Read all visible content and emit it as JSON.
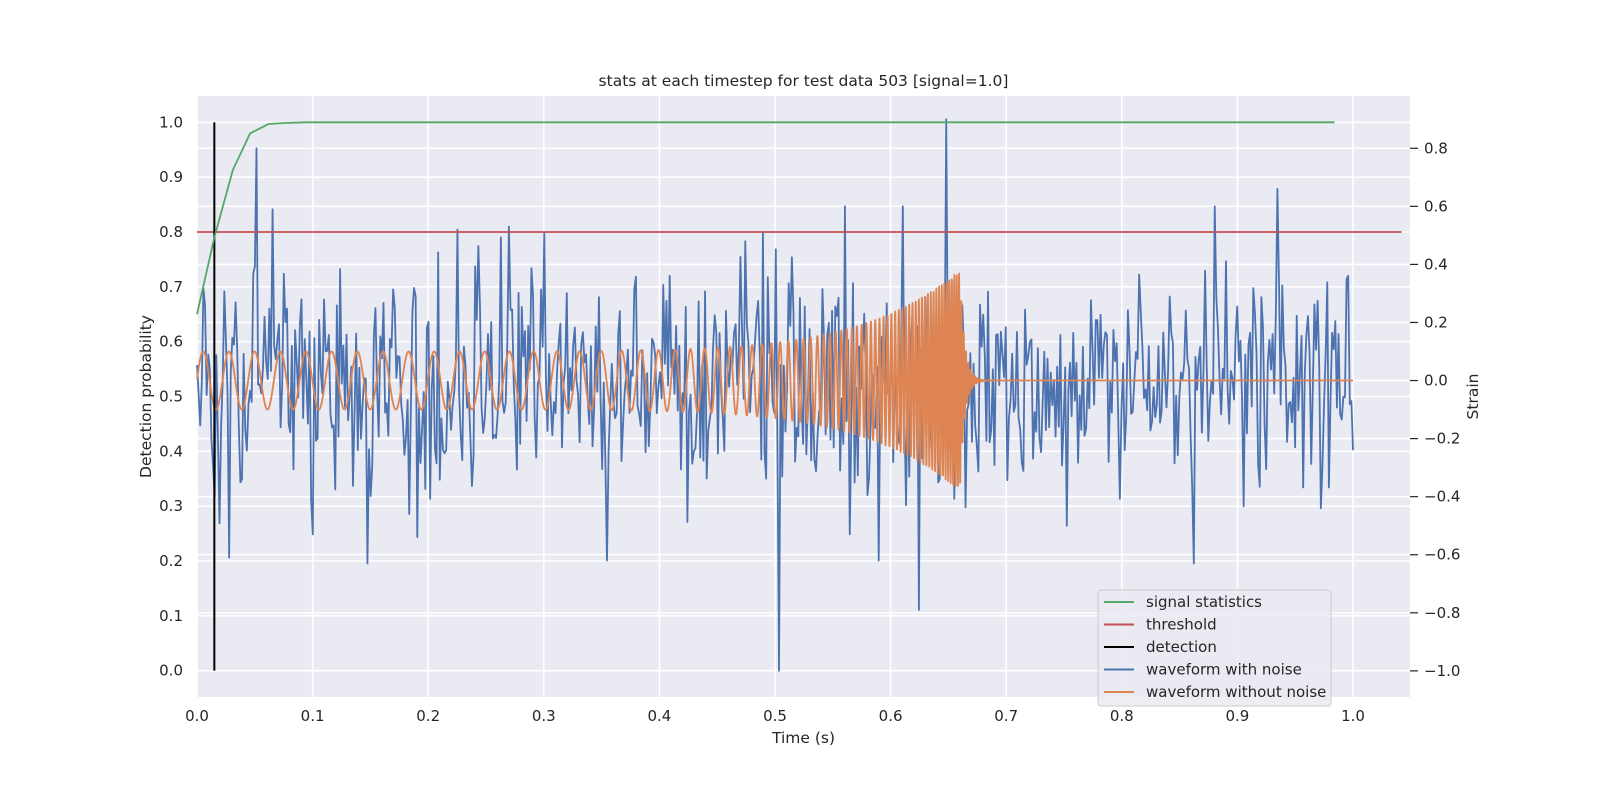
{
  "chart_data": {
    "type": "line",
    "title": "stats at each timestep for test data 503 [signal=1.0]",
    "xlabel": "Time (s)",
    "ylabel": "Detection probability",
    "y2label": "Strain",
    "xlim": [
      0.0,
      1.05
    ],
    "ylim": [
      -0.048,
      1.048
    ],
    "y2lim": [
      -1.09,
      0.98
    ],
    "xticks": [
      "0.0",
      "0.1",
      "0.2",
      "0.3",
      "0.4",
      "0.5",
      "0.6",
      "0.7",
      "0.8",
      "0.9",
      "1.0"
    ],
    "xtick_values": [
      0.0,
      0.1,
      0.2,
      0.3,
      0.4,
      0.5,
      0.6,
      0.7,
      0.8,
      0.9,
      1.0
    ],
    "yticks": [
      "0.0",
      "0.1",
      "0.2",
      "0.3",
      "0.4",
      "0.5",
      "0.6",
      "0.7",
      "0.8",
      "0.9",
      "1.0"
    ],
    "ytick_values": [
      0.0,
      0.1,
      0.2,
      0.3,
      0.4,
      0.5,
      0.6,
      0.7,
      0.8,
      0.9,
      1.0
    ],
    "y2ticks": [
      "−1.0",
      "−0.8",
      "−0.6",
      "−0.4",
      "−0.2",
      "0.0",
      "0.2",
      "0.4",
      "0.6",
      "0.8"
    ],
    "y2tick_values": [
      -1.0,
      -0.8,
      -0.6,
      -0.4,
      -0.2,
      0.0,
      0.2,
      0.4,
      0.6,
      0.8
    ],
    "grid": true,
    "legend_position": "lower-right",
    "series": [
      {
        "name": "signal statistics",
        "color": "#55a868",
        "axis": "left",
        "x": [
          0.0,
          0.015,
          0.031,
          0.046,
          0.062,
          0.078,
          0.094,
          0.12,
          0.2,
          0.4,
          0.6,
          0.8,
          0.984
        ],
        "y": [
          0.65,
          0.79,
          0.913,
          0.98,
          0.997,
          0.999,
          1.0,
          1.0,
          1.0,
          1.0,
          1.0,
          1.0,
          1.0
        ]
      },
      {
        "name": "threshold",
        "color": "#c44e52",
        "axis": "left",
        "x": [
          0.0,
          1.042
        ],
        "y": [
          0.8,
          0.8
        ]
      },
      {
        "name": "detection",
        "color": "#000000",
        "axis": "left",
        "x": [
          0.015,
          0.015
        ],
        "y": [
          0.0,
          1.0
        ]
      },
      {
        "name": "waveform with noise",
        "color": "#4c72b0",
        "axis": "right",
        "x_start": 0.0,
        "x_end": 1.0,
        "peaks": [
          {
            "x": 0.015,
            "y": -0.4
          },
          {
            "x": 0.028,
            "y": -0.61
          },
          {
            "x": 0.048,
            "y": 0.37
          },
          {
            "x": 0.052,
            "y": 0.8
          },
          {
            "x": 0.065,
            "y": 0.59
          },
          {
            "x": 0.1,
            "y": -0.53
          },
          {
            "x": 0.147,
            "y": -0.63
          },
          {
            "x": 0.183,
            "y": -0.46
          },
          {
            "x": 0.225,
            "y": 0.52
          },
          {
            "x": 0.27,
            "y": 0.53
          },
          {
            "x": 0.3,
            "y": 0.51
          },
          {
            "x": 0.355,
            "y": -0.62
          },
          {
            "x": 0.49,
            "y": 0.51
          },
          {
            "x": 0.504,
            "y": -1.0
          },
          {
            "x": 0.56,
            "y": 0.6
          },
          {
            "x": 0.565,
            "y": -0.53
          },
          {
            "x": 0.59,
            "y": -0.62
          },
          {
            "x": 0.61,
            "y": 0.6
          },
          {
            "x": 0.625,
            "y": -0.79
          },
          {
            "x": 0.648,
            "y": 0.9
          },
          {
            "x": 0.752,
            "y": -0.5
          },
          {
            "x": 0.862,
            "y": -0.63
          },
          {
            "x": 0.88,
            "y": 0.6
          },
          {
            "x": 0.935,
            "y": 0.66
          },
          {
            "x": 0.972,
            "y": -0.44
          }
        ],
        "noise_amplitude": 0.22
      },
      {
        "name": "waveform without noise",
        "color": "#dd8452",
        "axis": "right",
        "x_start": 0.0,
        "x_merger": 0.66,
        "x_end": 1.0,
        "amplitude_start": 0.1,
        "amplitude_peak": 0.38,
        "frequency_start_hz": 45,
        "frequency_peak_hz": 500
      }
    ]
  },
  "legend": {
    "items": [
      {
        "label": "signal statistics",
        "color": "#55a868"
      },
      {
        "label": "threshold",
        "color": "#c44e52"
      },
      {
        "label": "detection",
        "color": "#000000"
      },
      {
        "label": "waveform with noise",
        "color": "#4c72b0"
      },
      {
        "label": "waveform without noise",
        "color": "#dd8452"
      }
    ]
  },
  "colors": {
    "plot_background": "#eaeaf2",
    "grid": "#ffffff",
    "text": "#262626"
  }
}
